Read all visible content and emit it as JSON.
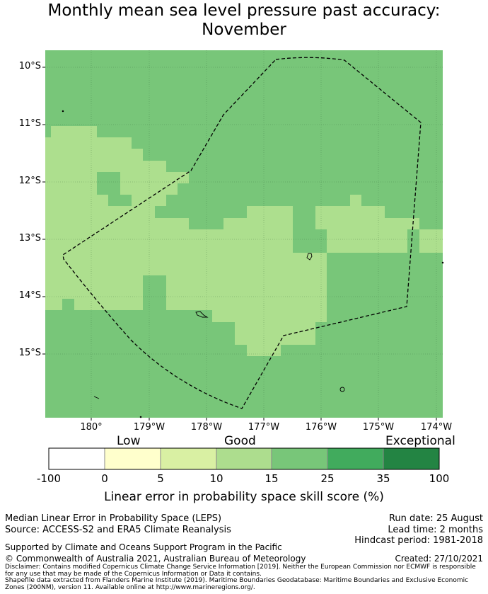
{
  "title": {
    "line1": "Monthly mean sea level pressure past accuracy:",
    "line2": "November"
  },
  "map": {
    "lat_labels": [
      "10°S",
      "11°S",
      "12°S",
      "13°S",
      "14°S",
      "15°S"
    ],
    "lon_labels": [
      "180°",
      "179°W",
      "178°W",
      "177°W",
      "176°W",
      "175°W",
      "174°W"
    ],
    "colors": {
      "good_light": "#addf8e",
      "good_mid": "#78c679",
      "boundary": "#000000"
    }
  },
  "colorbar": {
    "words": [
      "Low",
      "Good",
      "Exceptional"
    ],
    "ticks": [
      "-100",
      "0",
      "5",
      "10",
      "15",
      "25",
      "35",
      "100"
    ],
    "colors": [
      "#ffffff",
      "#ffffcc",
      "#d9f0a3",
      "#addd8e",
      "#78c679",
      "#41ab5d",
      "#238443"
    ],
    "label": "Linear error in probability space skill score (%)"
  },
  "footer": {
    "method": "Median Linear Error in Probability Space (LEPS)",
    "source": "Source: ACCESS-S2 and ERA5 Climate Reanalysis",
    "run_date": "Run date: 25 August",
    "lead_time": "Lead time: 2 months",
    "hindcast": "Hindcast period: 1981-2018",
    "support": "Supported by Climate and Oceans Support Program in the Pacific",
    "copyright": "© Commonwealth of Australia 2021, Australian Bureau of Meteorology",
    "created": "Created: 27/10/2021",
    "disclaimer": "Disclaimer: Contains modified Copernicus Climate Change Service Information [2019]. Neither the European Commission nor ECMWF is responsible for any use that may be made of the Copernicus Information or Data it contains.",
    "shapefile": "Shapefile data extracted from Flanders Marine Institute (2019). Maritime Boundaries Geodatabase: Maritime Boundaries and Exclusive Economic Zones (200NM), version 11. Available online at http://www.marineregions.org/."
  }
}
